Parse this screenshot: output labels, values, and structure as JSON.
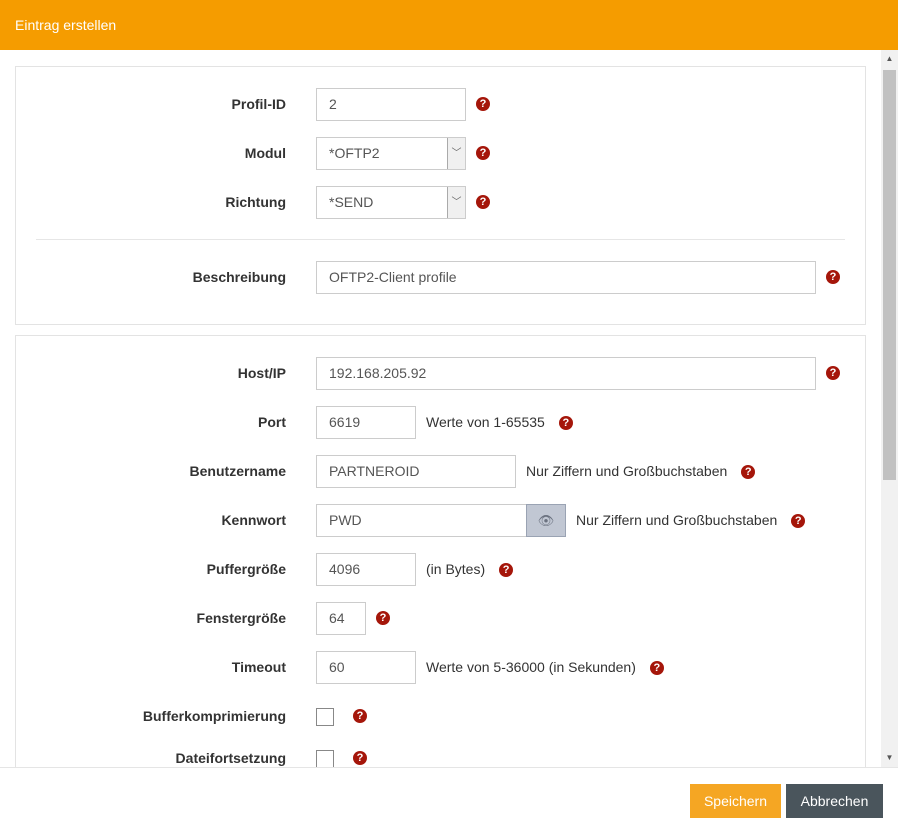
{
  "dialog": {
    "title": "Eintrag erstellen"
  },
  "section1": {
    "profile_id": {
      "label": "Profil-ID",
      "value": "2"
    },
    "module": {
      "label": "Modul",
      "value": "*OFTP2"
    },
    "direction": {
      "label": "Richtung",
      "value": "*SEND"
    },
    "description": {
      "label": "Beschreibung",
      "value": "OFTP2-Client profile"
    }
  },
  "section2": {
    "host": {
      "label": "Host/IP",
      "value": "192.168.205.92"
    },
    "port": {
      "label": "Port",
      "value": "6619",
      "hint": "Werte von 1-65535"
    },
    "username": {
      "label": "Benutzername",
      "value": "PARTNEROID",
      "hint": "Nur Ziffern und Großbuchstaben"
    },
    "password": {
      "label": "Kennwort",
      "value": "PWD",
      "hint": "Nur Ziffern und Großbuchstaben"
    },
    "buffer_size": {
      "label": "Puffergröße",
      "value": "4096",
      "hint": "(in Bytes)"
    },
    "window_size": {
      "label": "Fenstergröße",
      "value": "64"
    },
    "timeout": {
      "label": "Timeout",
      "value": "60",
      "hint": "Werte von 5-36000 (in Sekunden)"
    },
    "buffer_compression": {
      "label": "Bufferkomprimierung",
      "checked": false
    },
    "file_resume": {
      "label": "Dateifortsetzung",
      "checked": false
    }
  },
  "footer": {
    "save": "Speichern",
    "cancel": "Abbrechen"
  },
  "icons": {
    "help": "?",
    "eye": "eye-slash-icon"
  },
  "colors": {
    "header": "#f59c00",
    "help": "#a5160a",
    "save": "#f5a623",
    "cancel": "#4a555c"
  }
}
